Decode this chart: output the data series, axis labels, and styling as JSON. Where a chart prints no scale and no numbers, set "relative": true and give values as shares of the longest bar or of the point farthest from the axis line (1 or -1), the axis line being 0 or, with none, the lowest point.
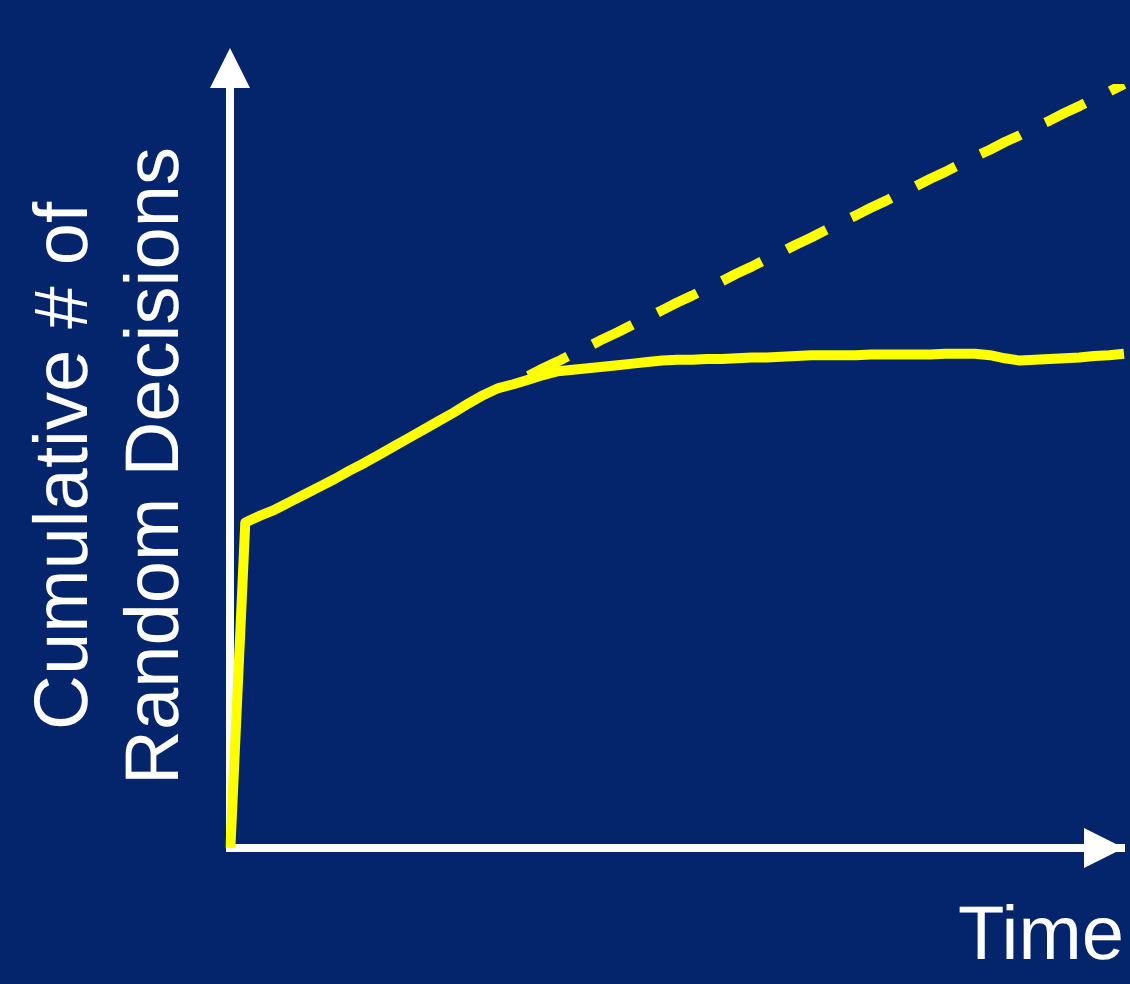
{
  "chart_data": {
    "type": "line",
    "relative": true,
    "legend": false,
    "grid": false,
    "ylabel": "Cumulative # of\nRandom Decisions",
    "xlabel": "Time",
    "categories": [
      null,
      null,
      null,
      null,
      null,
      null,
      null,
      null,
      null,
      null,
      null,
      null,
      null,
      null,
      null,
      null,
      null,
      null,
      null,
      null,
      null,
      null,
      null,
      null,
      null,
      null,
      null,
      null,
      null,
      null,
      null,
      null,
      null,
      null,
      null,
      null,
      null,
      null,
      null,
      null,
      null,
      null,
      null,
      null,
      null,
      null,
      null,
      null,
      null,
      null,
      null,
      null,
      null,
      null,
      null,
      null,
      null,
      null,
      null,
      null,
      null
    ],
    "series": [
      {
        "color": "#ffff00",
        "line_style": "solid",
        "values": [
          0,
          0.426,
          0.435,
          0.443,
          0.453,
          0.463,
          0.473,
          0.483,
          0.494,
          0.504,
          0.515,
          0.526,
          0.537,
          0.548,
          0.559,
          0.57,
          0.582,
          0.593,
          0.602,
          0.607,
          0.613,
          0.619,
          0.624,
          0.626,
          0.628,
          0.63,
          0.632,
          0.634,
          0.636,
          0.638,
          0.639,
          0.639,
          0.64,
          0.64,
          0.641,
          0.642,
          0.642,
          0.643,
          0.644,
          0.645,
          0.645,
          0.645,
          0.645,
          0.646,
          0.646,
          0.646,
          0.646,
          0.646,
          0.647,
          0.647,
          0.647,
          0.645,
          0.641,
          0.638,
          0.639,
          0.64,
          0.641,
          0.642,
          0.644,
          0.645,
          0.647
        ]
      },
      {
        "color": "#ffff00",
        "line_style": "dashed",
        "values": [
          null,
          null,
          null,
          null,
          null,
          null,
          null,
          null,
          null,
          null,
          null,
          null,
          null,
          null,
          null,
          null,
          null,
          null,
          null,
          null,
          0.618,
          0.628,
          0.637,
          0.647,
          0.656,
          0.666,
          0.675,
          0.685,
          0.694,
          0.704,
          0.714,
          0.723,
          0.733,
          0.742,
          0.752,
          0.761,
          0.771,
          0.78,
          0.79,
          0.799,
          0.809,
          0.819,
          0.828,
          0.838,
          0.847,
          0.857,
          0.866,
          0.876,
          0.885,
          0.895,
          0.905,
          0.914,
          0.924,
          0.933,
          0.943,
          0.952,
          0.962,
          0.971,
          0.981,
          0.99,
          1.0
        ]
      }
    ]
  }
}
